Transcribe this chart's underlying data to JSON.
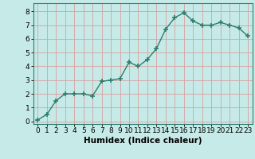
{
  "x": [
    0,
    1,
    2,
    3,
    4,
    5,
    6,
    7,
    8,
    9,
    10,
    11,
    12,
    13,
    14,
    15,
    16,
    17,
    18,
    19,
    20,
    21,
    22,
    23
  ],
  "y": [
    0.1,
    0.5,
    1.5,
    2.0,
    2.0,
    2.0,
    1.85,
    2.9,
    3.0,
    3.1,
    4.3,
    4.0,
    4.5,
    5.3,
    6.7,
    7.55,
    7.9,
    7.3,
    7.0,
    7.0,
    7.2,
    7.0,
    6.8,
    6.2
  ],
  "line_color": "#2e7d6e",
  "marker": "+",
  "marker_size": 4,
  "bg_color": "#c5eae7",
  "grid_color": "#d9a0a0",
  "xlabel": "Humidex (Indice chaleur)",
  "ylim": [
    -0.2,
    8.6
  ],
  "xlim": [
    -0.5,
    23.5
  ],
  "yticks": [
    0,
    1,
    2,
    3,
    4,
    5,
    6,
    7,
    8
  ],
  "xticks": [
    0,
    1,
    2,
    3,
    4,
    5,
    6,
    7,
    8,
    9,
    10,
    11,
    12,
    13,
    14,
    15,
    16,
    17,
    18,
    19,
    20,
    21,
    22,
    23
  ],
  "xlabel_fontsize": 7.5,
  "tick_fontsize": 6.5,
  "line_width": 1.0,
  "spine_color": "#2e7d6e"
}
